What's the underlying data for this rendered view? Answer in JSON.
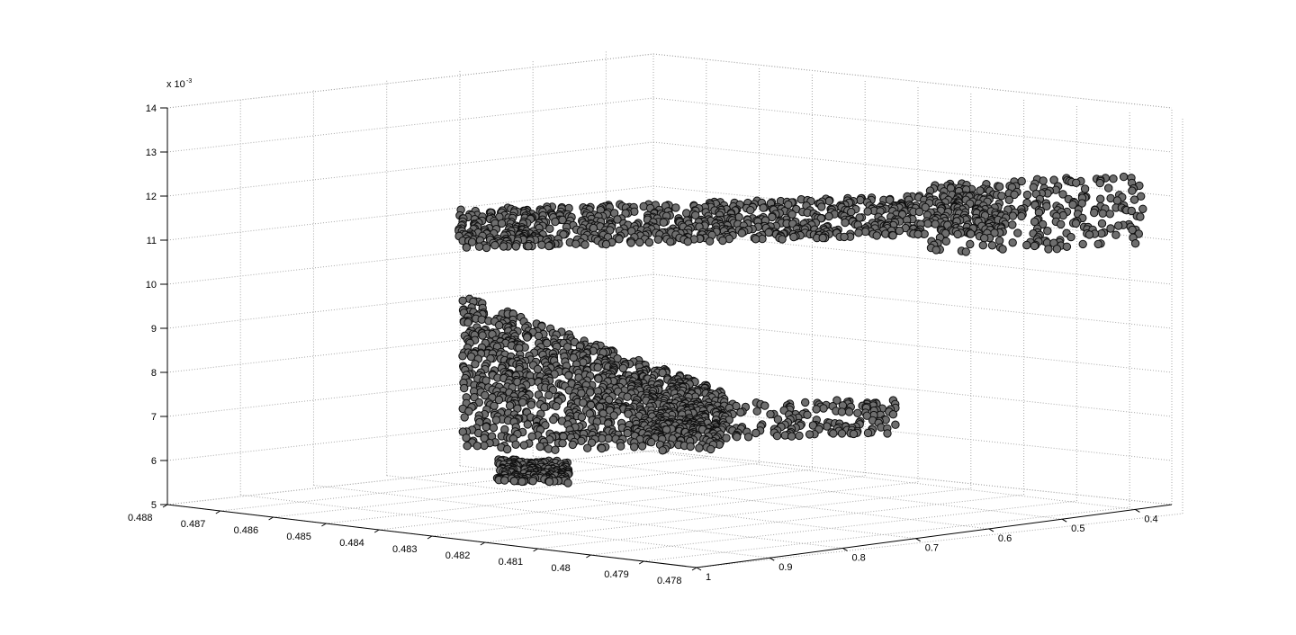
{
  "chart_data": {
    "type": "scatter",
    "projection": "3d",
    "title": "",
    "xlabel": "",
    "ylabel": "",
    "zlabel": "",
    "grid": true,
    "x_axis": {
      "ticks": [
        "0.488",
        "0.487",
        "0.486",
        "0.485",
        "0.484",
        "0.483",
        "0.482",
        "0.481",
        "0.48",
        "0.479",
        "0.478"
      ],
      "range": [
        0.478,
        0.488
      ]
    },
    "y_axis": {
      "ticks": [
        "1",
        "0.9",
        "0.8",
        "0.7",
        "0.6",
        "0.5",
        "0.4"
      ],
      "range": [
        0.35,
        1.0
      ]
    },
    "z_axis": {
      "ticks": [
        "5",
        "6",
        "7",
        "8",
        "9",
        "10",
        "11",
        "12",
        "13",
        "14"
      ],
      "range": [
        5,
        14
      ],
      "exponent_label": "x 10",
      "exponent_power": "-3"
    },
    "marker": {
      "face": "#6e6e6e",
      "edge": "#0e0e0e"
    },
    "point_cloud": {
      "description": "dense surface of sampled points",
      "regions": [
        {
          "name": "upper-sheet",
          "x": [
            0.4832,
            0.4795
          ],
          "y": [
            0.95,
            0.48
          ],
          "z": [
            11.4,
            12.3
          ]
        },
        {
          "name": "right-wing",
          "x": [
            0.48,
            0.4786
          ],
          "y": [
            0.55,
            0.36
          ],
          "z": [
            11.0,
            12.6
          ]
        },
        {
          "name": "lower-sheet",
          "x": [
            0.483,
            0.4803
          ],
          "y": [
            0.96,
            0.8
          ],
          "z": [
            6.9,
            10.4
          ]
        },
        {
          "name": "lower-arm",
          "x": [
            0.4813,
            0.4796
          ],
          "y": [
            0.85,
            0.62
          ],
          "z": [
            7.1,
            7.9
          ]
        },
        {
          "name": "bottom-tip",
          "x": [
            0.4822,
            0.4814
          ],
          "y": [
            0.97,
            0.93
          ],
          "z": [
            6.3,
            6.8
          ]
        }
      ]
    }
  }
}
